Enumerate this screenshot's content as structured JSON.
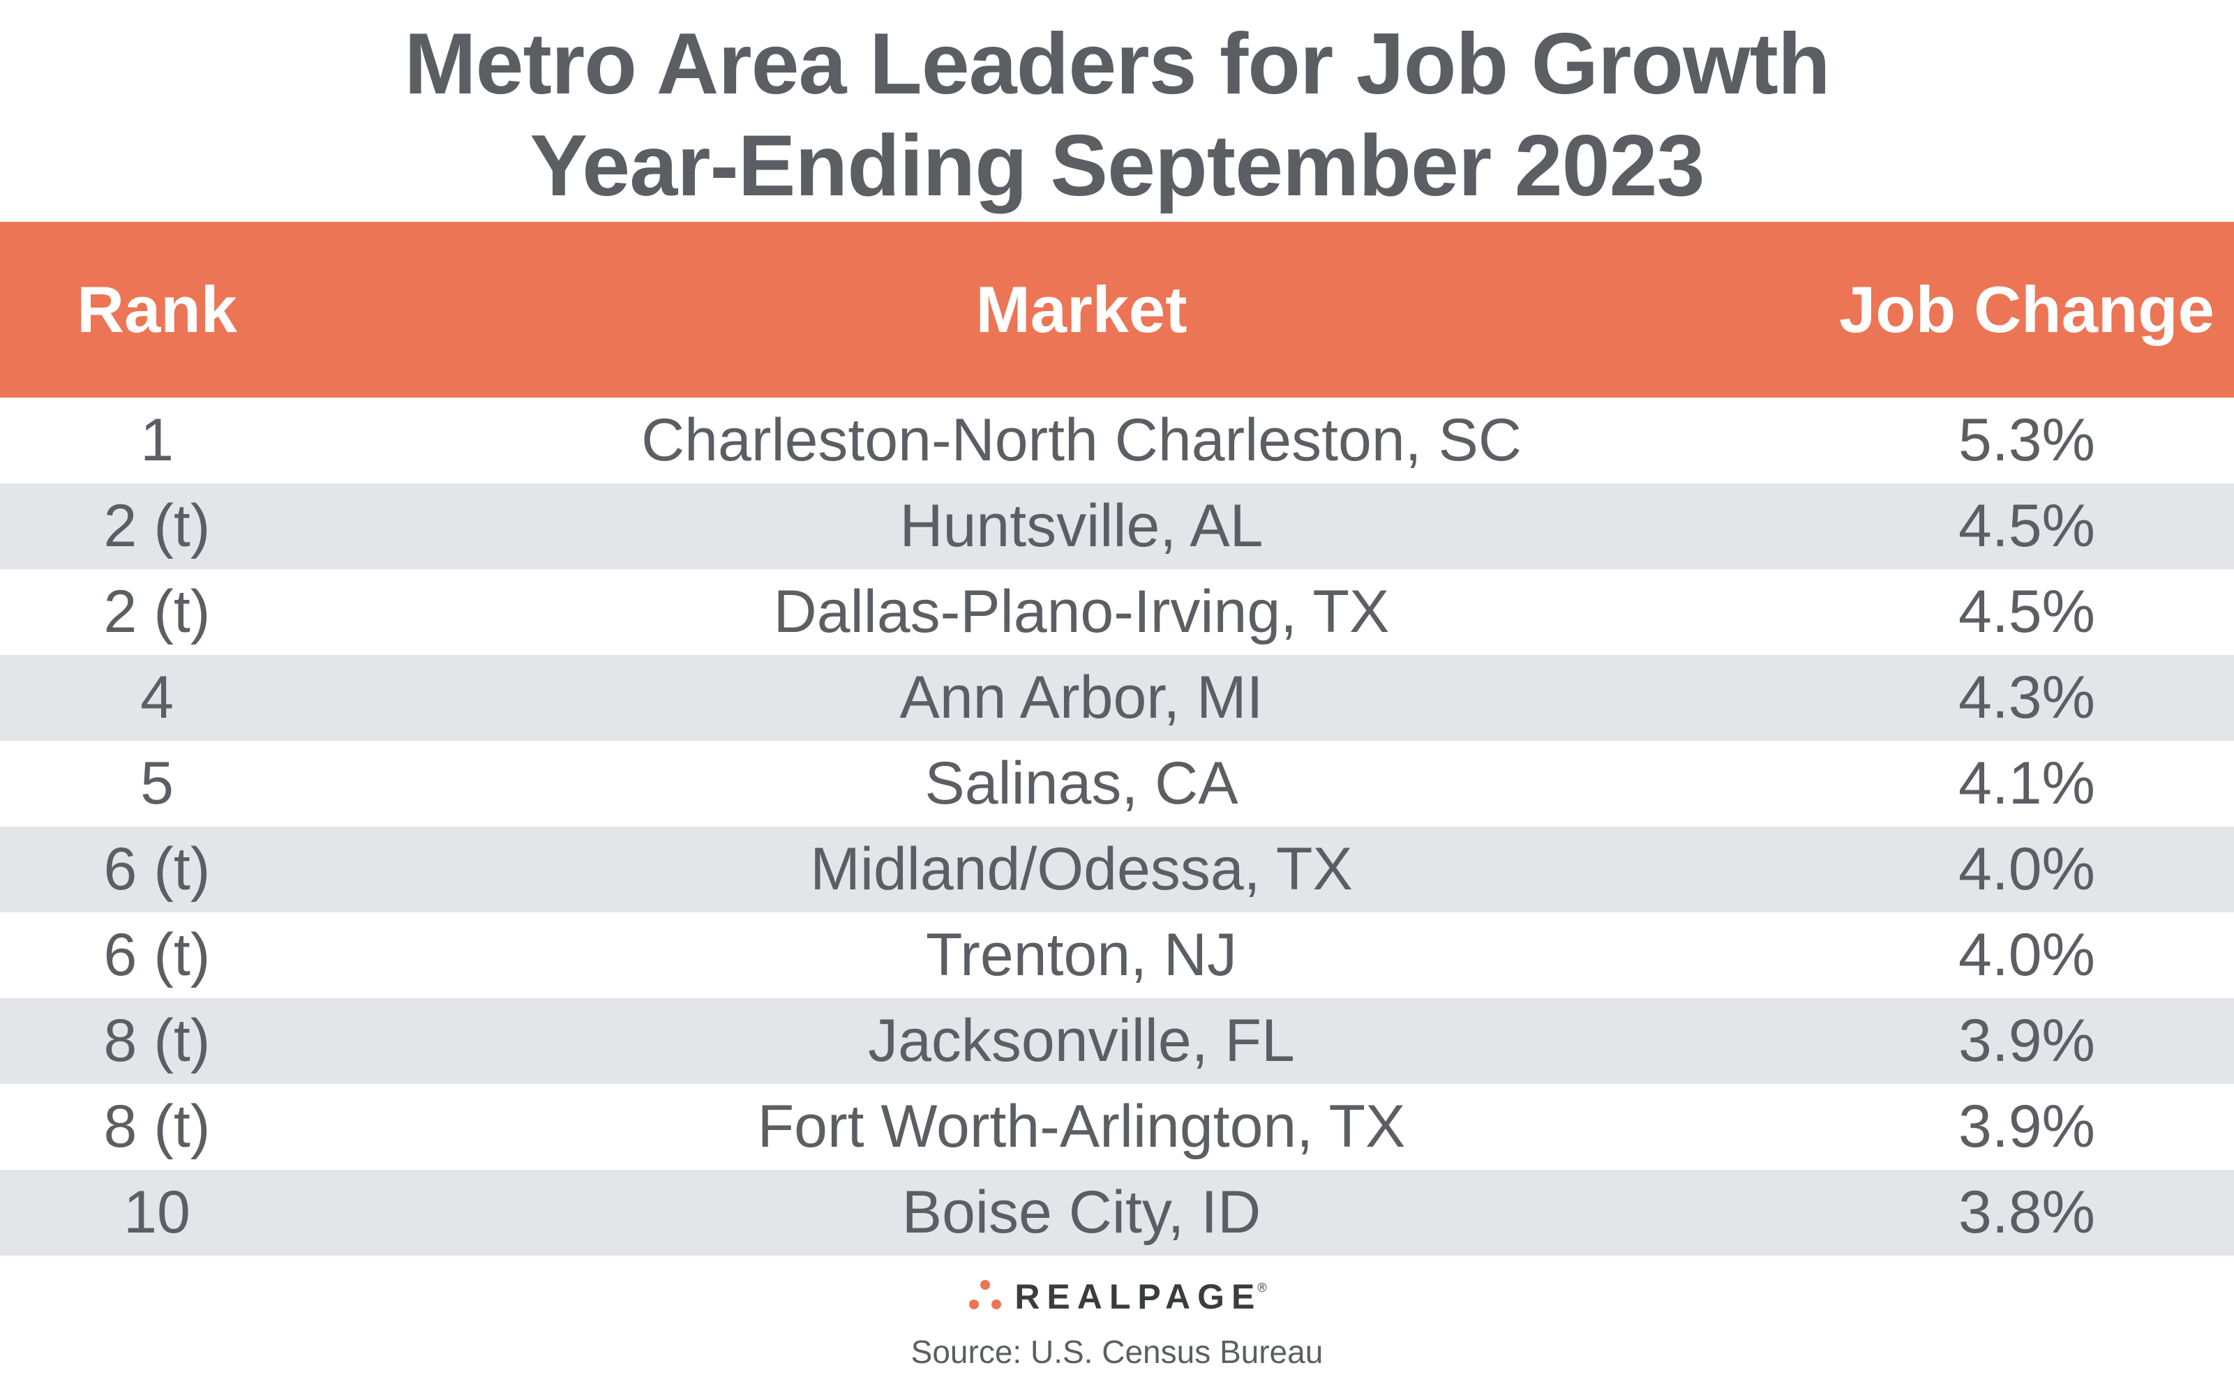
{
  "title": {
    "line1": "Metro Area Leaders for Job Growth",
    "line2": "Year-Ending September 2023"
  },
  "colors": {
    "header_bg": "#ec7555",
    "header_text": "#ffffff",
    "row_alt": "#e3e5e8",
    "text": "#5b5f63",
    "logo_dot": "#ec7555"
  },
  "chart_data": {
    "type": "table",
    "title": "Metro Area Leaders for Job Growth Year-Ending September 2023",
    "columns": [
      "Rank",
      "Market",
      "Job Change"
    ],
    "rows": [
      {
        "rank": "1",
        "market": "Charleston-North Charleston, SC",
        "change": "5.3%"
      },
      {
        "rank": "2 (t)",
        "market": "Huntsville, AL",
        "change": "4.5%"
      },
      {
        "rank": "2 (t)",
        "market": "Dallas-Plano-Irving, TX",
        "change": "4.5%"
      },
      {
        "rank": "4",
        "market": "Ann Arbor, MI",
        "change": "4.3%"
      },
      {
        "rank": "5",
        "market": "Salinas, CA",
        "change": "4.1%"
      },
      {
        "rank": "6 (t)",
        "market": "Midland/Odessa, TX",
        "change": "4.0%"
      },
      {
        "rank": "6 (t)",
        "market": "Trenton, NJ",
        "change": "4.0%"
      },
      {
        "rank": "8 (t)",
        "market": "Jacksonville, FL",
        "change": "3.9%"
      },
      {
        "rank": "8 (t)",
        "market": "Fort Worth-Arlington, TX",
        "change": "3.9%"
      },
      {
        "rank": "10",
        "market": "Boise City, ID",
        "change": "3.8%"
      }
    ]
  },
  "footer": {
    "logo_text": "REALPAGE",
    "logo_tm": "®",
    "logo_icon": "realpage-dots-icon",
    "source": "Source: U.S. Census Bureau"
  }
}
